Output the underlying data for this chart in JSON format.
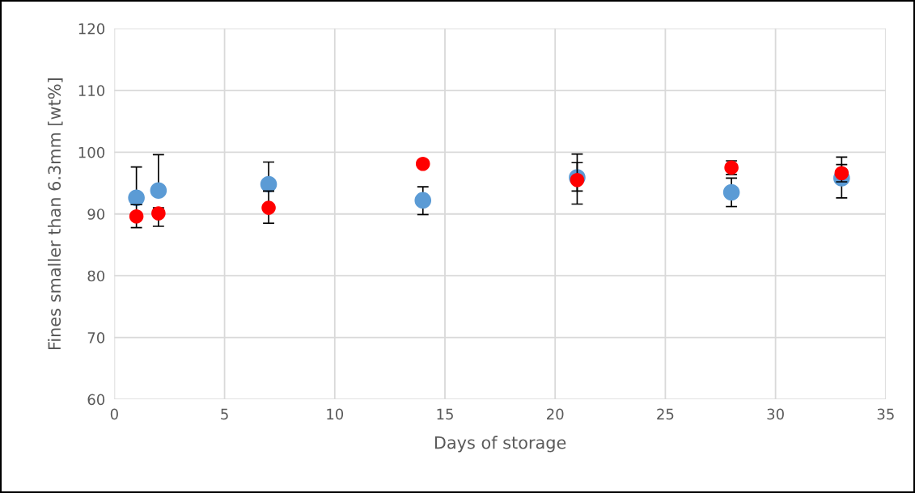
{
  "chart_data": {
    "type": "scatter",
    "xlabel": "Days of storage",
    "ylabel": "Fines smaller than 6.3mm [wt%]",
    "xlim": [
      0,
      35
    ],
    "xticks": [
      0,
      5,
      10,
      15,
      20,
      25,
      30,
      35
    ],
    "ylim": [
      60,
      120
    ],
    "yticks": [
      60,
      70,
      80,
      90,
      100,
      110,
      120
    ],
    "grid": true,
    "marker": "circle",
    "series": [
      {
        "color": "#5b9bd5",
        "x": [
          1,
          2,
          7,
          14,
          21,
          28,
          33
        ],
        "values": [
          92.6,
          93.8,
          94.8,
          92.2,
          95.9,
          93.5,
          95.8
        ],
        "errors": [
          [
            91.5,
            97.6
          ],
          [
            93.8,
            99.6
          ],
          [
            93.7,
            98.4
          ],
          [
            89.9,
            94.4
          ],
          [
            91.6,
            99.7
          ],
          [
            91.2,
            95.8
          ],
          [
            92.6,
            99.2
          ]
        ]
      },
      {
        "color": "#ff0000",
        "x": [
          1,
          2,
          7,
          14,
          21,
          28,
          33
        ],
        "values": [
          89.6,
          90.1,
          91.0,
          98.1,
          95.5,
          97.5,
          96.6
        ],
        "errors": [
          [
            87.8,
            91.5
          ],
          [
            88.0,
            91.0
          ],
          [
            88.5,
            93.7
          ],
          null,
          [
            93.7,
            98.3
          ],
          [
            96.4,
            98.6
          ],
          [
            95.2,
            98.0
          ]
        ]
      }
    ]
  }
}
